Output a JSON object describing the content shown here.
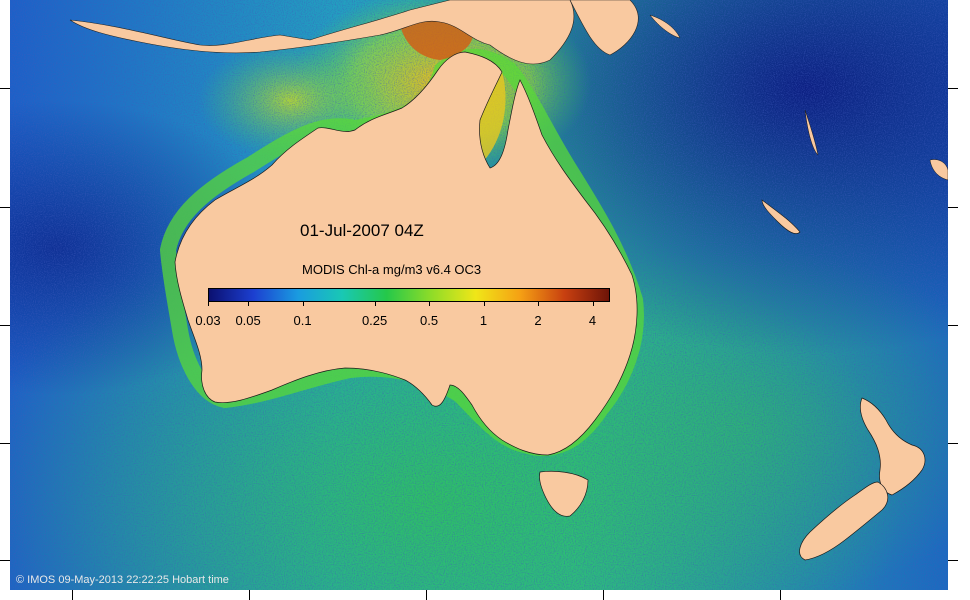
{
  "map": {
    "date_label": "01-Jul-2007 04Z",
    "colorbar_title": "MODIS Chl-a mg/m3 v6.4 OC3",
    "colorbar_ticks": [
      "0.03",
      "0.05",
      "0.1",
      "0.25",
      "0.5",
      "1",
      "2",
      "4"
    ],
    "copyright": "© IMOS 09-May-2013 22:22:25 Hobart time",
    "land_color": "#f9c9a0",
    "colormap": [
      "#0b1070",
      "#1c3fd0",
      "#1a9be0",
      "#19c8b4",
      "#25c84a",
      "#8fdc28",
      "#f0e618",
      "#f5a014",
      "#c84010",
      "#6e1408"
    ],
    "colorbar_range": [
      0.03,
      5
    ],
    "colorbar_scale": "log",
    "regions": [
      "Australia",
      "Tasmania",
      "New Zealand North Island",
      "New Zealand South Island",
      "New Guinea"
    ]
  }
}
